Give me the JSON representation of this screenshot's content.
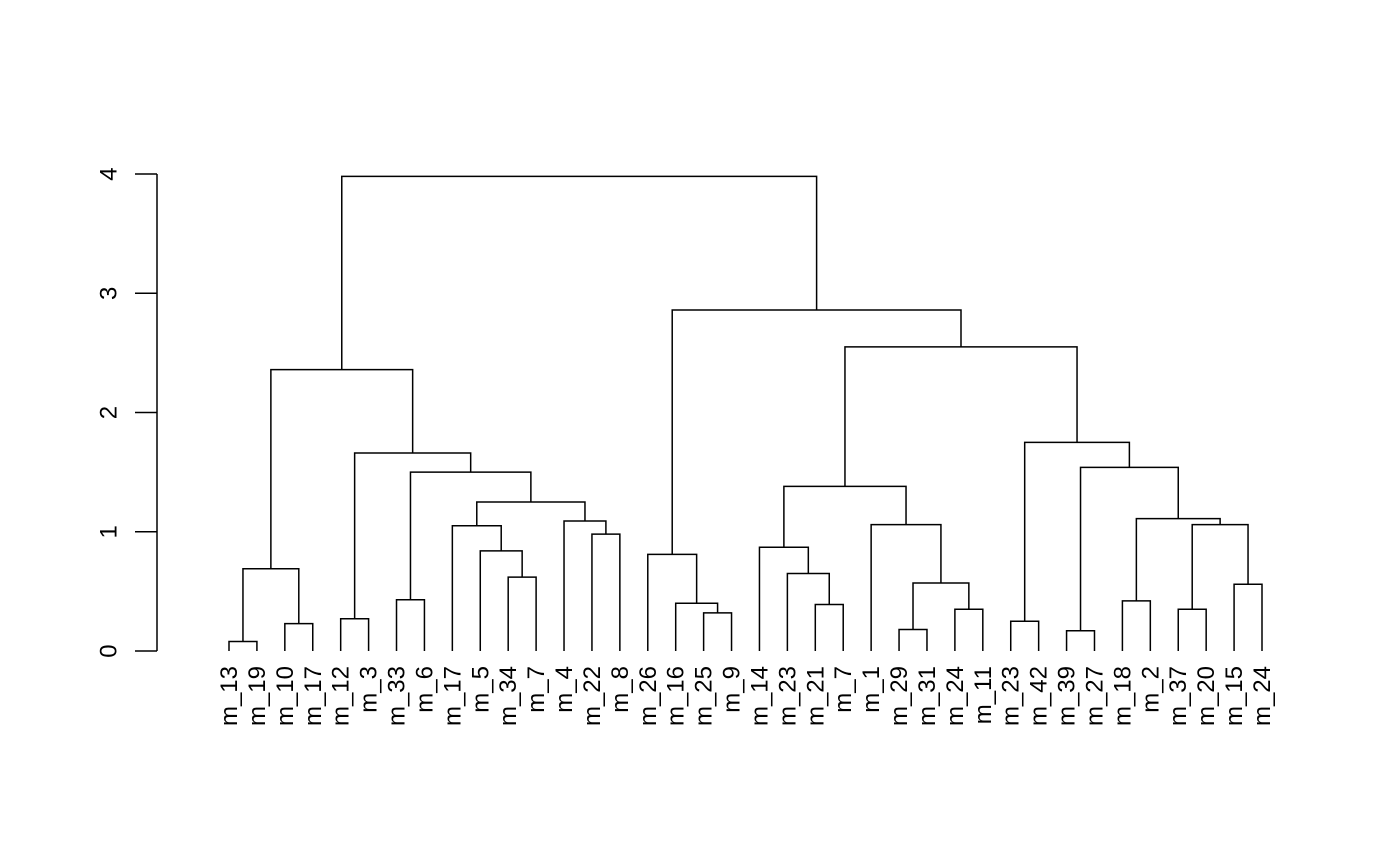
{
  "chart_data": {
    "type": "dendrogram",
    "ylim": [
      0,
      4
    ],
    "y_ticks": [
      "0",
      "1",
      "2",
      "3",
      "4"
    ],
    "leaf_labels": [
      "m_13",
      "m_19",
      "m_10",
      "m_17",
      "m_12",
      "m_3",
      "m_33",
      "m_6",
      "m_17",
      "m_5",
      "m_34",
      "m_7",
      "m_4",
      "m_22",
      "m_8",
      "m_26",
      "m_16",
      "m_25",
      "m_9",
      "m_14",
      "m_23",
      "m_21",
      "m_7",
      "m_1",
      "m_29",
      "m_31",
      "m_24",
      "m_11",
      "m_23",
      "m_42",
      "m_39",
      "m_27",
      "m_18",
      "m_2",
      "m_37",
      "m_20",
      "m_15",
      "m_24"
    ],
    "merges": [
      {
        "left": 0,
        "right": 1,
        "height": 0.08
      },
      {
        "left": 2,
        "right": 3,
        "height": 0.23
      },
      {
        "left": 38,
        "right": 39,
        "height": 0.69
      },
      {
        "left": 4,
        "right": 5,
        "height": 0.27
      },
      {
        "left": 6,
        "right": 7,
        "height": 0.43
      },
      {
        "left": 10,
        "right": 11,
        "height": 0.62
      },
      {
        "left": 9,
        "right": 43,
        "height": 0.84
      },
      {
        "left": 8,
        "right": 44,
        "height": 1.05
      },
      {
        "left": 13,
        "right": 14,
        "height": 0.98
      },
      {
        "left": 12,
        "right": 46,
        "height": 1.09
      },
      {
        "left": 45,
        "right": 47,
        "height": 1.25
      },
      {
        "left": 42,
        "right": 48,
        "height": 1.5
      },
      {
        "left": 41,
        "right": 49,
        "height": 1.66
      },
      {
        "left": 40,
        "right": 50,
        "height": 2.36
      },
      {
        "left": 17,
        "right": 18,
        "height": 0.32
      },
      {
        "left": 16,
        "right": 52,
        "height": 0.4
      },
      {
        "left": 15,
        "right": 53,
        "height": 0.81
      },
      {
        "left": 21,
        "right": 22,
        "height": 0.39
      },
      {
        "left": 20,
        "right": 55,
        "height": 0.65
      },
      {
        "left": 19,
        "right": 56,
        "height": 0.87
      },
      {
        "left": 24,
        "right": 25,
        "height": 0.18
      },
      {
        "left": 26,
        "right": 27,
        "height": 0.35
      },
      {
        "left": 58,
        "right": 59,
        "height": 0.57
      },
      {
        "left": 23,
        "right": 60,
        "height": 1.06
      },
      {
        "left": 57,
        "right": 61,
        "height": 1.38
      },
      {
        "left": 28,
        "right": 29,
        "height": 0.25
      },
      {
        "left": 30,
        "right": 31,
        "height": 0.17
      },
      {
        "left": 32,
        "right": 33,
        "height": 0.42
      },
      {
        "left": 34,
        "right": 35,
        "height": 0.35
      },
      {
        "left": 36,
        "right": 37,
        "height": 0.56
      },
      {
        "left": 66,
        "right": 67,
        "height": 1.06
      },
      {
        "left": 65,
        "right": 68,
        "height": 1.11
      },
      {
        "left": 64,
        "right": 69,
        "height": 1.54
      },
      {
        "left": 63,
        "right": 70,
        "height": 1.75
      },
      {
        "left": 62,
        "right": 71,
        "height": 2.55
      },
      {
        "left": 54,
        "right": 72,
        "height": 2.86
      },
      {
        "left": 51,
        "right": 73,
        "height": 3.98
      }
    ]
  }
}
